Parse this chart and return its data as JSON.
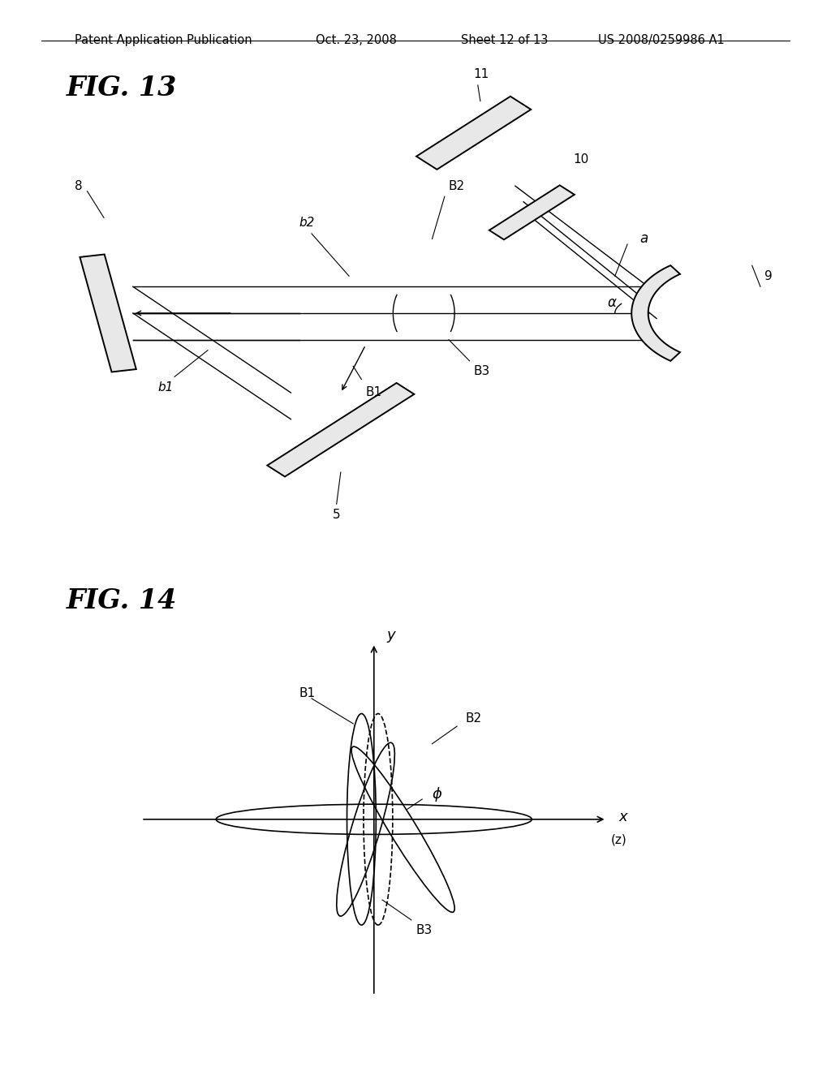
{
  "bg_color": "#ffffff",
  "header_text1": "Patent Application Publication",
  "header_text2": "Oct. 23, 2008",
  "header_text3": "Sheet 12 of 13",
  "header_text4": "US 2008/0259986 A1",
  "fig13_title": "FIG. 13",
  "fig14_title": "FIG. 14",
  "header_fontsize": 10.5,
  "title_fontsize": 24
}
